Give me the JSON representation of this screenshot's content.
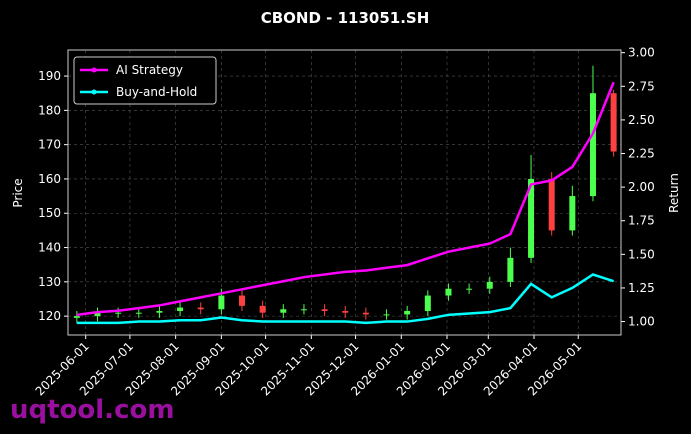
{
  "chart_data": {
    "type": "candlestick",
    "title": "CBOND - 113051.SH",
    "ylabel": "Price",
    "y2label": "Return",
    "watermark": "uqtool.com",
    "x": [
      "2025-05-26",
      "2025-06-09",
      "2025-06-23",
      "2025-07-07",
      "2025-07-21",
      "2025-08-04",
      "2025-08-18",
      "2025-09-01",
      "2025-09-15",
      "2025-09-29",
      "2025-10-13",
      "2025-10-27",
      "2025-11-10",
      "2025-11-24",
      "2025-12-08",
      "2025-12-22",
      "2026-01-05",
      "2026-01-19",
      "2026-02-02",
      "2026-02-16",
      "2026-03-02",
      "2026-03-16",
      "2026-03-30",
      "2026-04-13",
      "2026-04-27",
      "2026-05-11",
      "2026-05-25"
    ],
    "open": [
      119.5,
      120,
      121,
      121,
      121,
      121.5,
      122.5,
      122,
      126,
      123,
      121,
      122,
      122,
      121.5,
      121,
      120.5,
      120.5,
      121.5,
      126,
      128,
      128,
      130,
      137,
      160,
      145,
      155,
      185
    ],
    "high": [
      121.5,
      122.5,
      122.5,
      122.5,
      123,
      124,
      124,
      128,
      127.5,
      124.5,
      123.5,
      123.5,
      123.5,
      123,
      122.5,
      122,
      123,
      127.5,
      129.5,
      129.5,
      131.5,
      140,
      167,
      162,
      158,
      193,
      186
    ],
    "low": [
      118,
      118.5,
      119.5,
      119.5,
      119.5,
      120,
      120.5,
      120.5,
      121.5,
      119.5,
      119.5,
      120.5,
      120,
      119.5,
      119,
      119,
      119,
      120,
      124.5,
      126.5,
      126.5,
      128.5,
      135.5,
      143.5,
      143.5,
      153.5,
      166.5
    ],
    "close": [
      120,
      121,
      121,
      121,
      121.5,
      122.5,
      122,
      126,
      123,
      121,
      122,
      122,
      121.5,
      121,
      120.5,
      120.5,
      121.5,
      126,
      128,
      128,
      130,
      137,
      160,
      145,
      155,
      185,
      168
    ],
    "up_color": "#4cff4c",
    "down_color": "#ff4040",
    "series": [
      {
        "name": "AI Strategy",
        "color": "#ff00ff",
        "axis": "y2",
        "values": [
          1.05,
          1.07,
          1.08,
          1.1,
          1.12,
          1.15,
          1.18,
          1.21,
          1.24,
          1.27,
          1.3,
          1.33,
          1.35,
          1.37,
          1.38,
          1.4,
          1.42,
          1.47,
          1.52,
          1.55,
          1.58,
          1.65,
          2.02,
          2.05,
          2.15,
          2.4,
          2.78
        ]
      },
      {
        "name": "Buy-and-Hold",
        "color": "#00ffff",
        "axis": "y2",
        "values": [
          0.99,
          0.99,
          0.99,
          1.0,
          1.0,
          1.01,
          1.01,
          1.03,
          1.01,
          1.0,
          1.0,
          1.0,
          1.0,
          1.0,
          0.99,
          1.0,
          1.0,
          1.02,
          1.05,
          1.06,
          1.07,
          1.1,
          1.28,
          1.18,
          1.25,
          1.35,
          1.3
        ]
      }
    ],
    "xlim": [
      "2025-05-20",
      "2026-05-30"
    ],
    "xticks": [
      "2025-06-01",
      "2025-07-01",
      "2025-08-01",
      "2025-09-01",
      "2025-10-01",
      "2025-11-01",
      "2025-12-01",
      "2026-01-01",
      "2026-02-01",
      "2026-03-01",
      "2026-04-01",
      "2026-05-01"
    ],
    "ylim": [
      114.5,
      197.6
    ],
    "yticks": [
      120,
      130,
      140,
      150,
      160,
      170,
      180,
      190
    ],
    "y2lim": [
      0.9,
      3.02
    ],
    "y2ticks": [
      {
        "value": 1,
        "label": "1.00"
      },
      {
        "value": 1.25,
        "label": "1.25"
      },
      {
        "value": 1.5,
        "label": "1.50"
      },
      {
        "value": 1.75,
        "label": "1.75"
      },
      {
        "value": 2,
        "label": "2.00"
      },
      {
        "value": 2.25,
        "label": "2.25"
      },
      {
        "value": 2.5,
        "label": "2.50"
      },
      {
        "value": 2.75,
        "label": "2.75"
      },
      {
        "value": 3,
        "label": "3.00"
      }
    ],
    "grid": true,
    "legend": "upper left"
  }
}
